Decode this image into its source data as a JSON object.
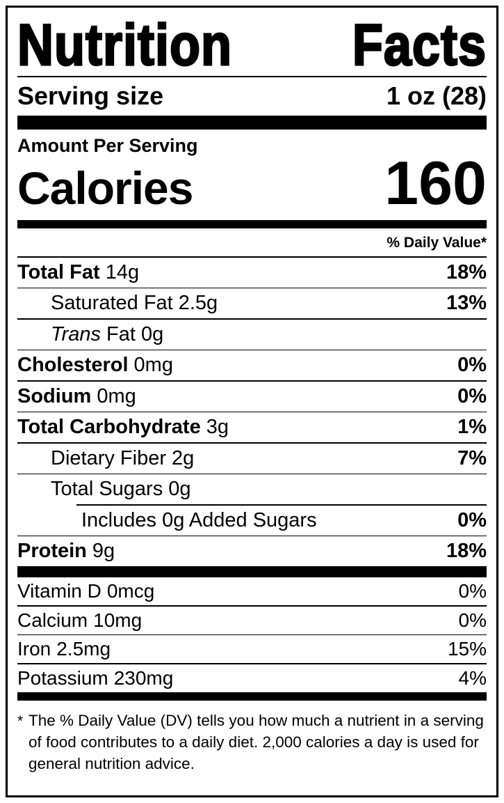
{
  "label": {
    "title_words": [
      "Nutrition",
      "Facts"
    ],
    "serving_size_label": "Serving size",
    "serving_size_value": "1 oz (28)",
    "amount_per_serving": "Amount Per Serving",
    "calories_label": "Calories",
    "calories_value": "160",
    "daily_value_header": "% Daily Value*",
    "footnote_marker": "*",
    "footnote_text": "The % Daily Value (DV) tells you how much a nutrient in a serving of food contributes to a daily diet. 2,000 calories a day is used for general nutrition advice."
  },
  "nutrients": [
    {
      "name": "Total Fat",
      "amount": "14g",
      "dv": "18%"
    },
    {
      "name": "Saturated Fat",
      "amount": "2.5g",
      "dv": "13%"
    },
    {
      "name": "Trans",
      "amount": "Fat 0g",
      "dv": ""
    },
    {
      "name": "Cholesterol",
      "amount": "0mg",
      "dv": "0%"
    },
    {
      "name": "Sodium",
      "amount": "0mg",
      "dv": "0%"
    },
    {
      "name": "Total Carbohydrate",
      "amount": "3g",
      "dv": "1%"
    },
    {
      "name": "Dietary Fiber",
      "amount": "2g",
      "dv": "7%"
    },
    {
      "name": "Total Sugars",
      "amount": "0g",
      "dv": ""
    },
    {
      "name": "Includes 0g Added Sugars",
      "amount": "",
      "dv": "0%"
    },
    {
      "name": "Protein",
      "amount": "9g",
      "dv": "18%"
    }
  ],
  "vitamins": [
    {
      "name": "Vitamin D",
      "amount": "0mcg",
      "dv": "0%"
    },
    {
      "name": "Calcium",
      "amount": "10mg",
      "dv": "0%"
    },
    {
      "name": "Iron",
      "amount": "2.5mg",
      "dv": "15%"
    },
    {
      "name": "Potassium",
      "amount": "230mg",
      "dv": "4%"
    }
  ],
  "colors": {
    "text": "#000000",
    "background": "#ffffff"
  }
}
